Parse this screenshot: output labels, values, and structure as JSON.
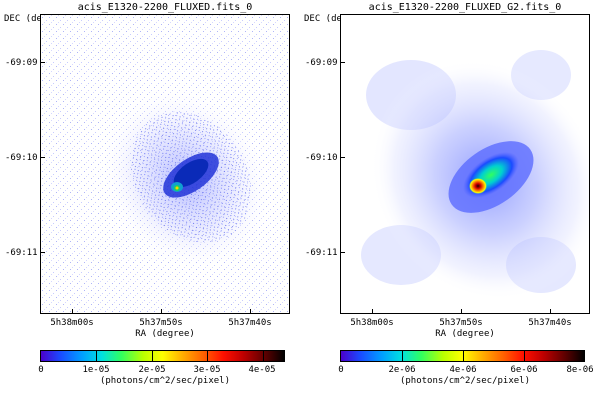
{
  "panels": [
    {
      "title": "acis_E1320-2200_FLUXED.fits_0",
      "dec_label": "DEC (degree)",
      "ra_label": "RA (degree)",
      "dec_ticks": [
        "-69:09",
        "-69:10",
        "-69:11"
      ],
      "ra_ticks": [
        "5h38m00s",
        "5h37m50s",
        "5h37m40s"
      ],
      "colorbar_ticks": [
        "0",
        "1e-05",
        "2e-05",
        "3e-05",
        "4e-05"
      ],
      "colorbar_units": "(photons/cm^2/sec/pixel)"
    },
    {
      "title": "acis_E1320-2200_FLUXED_G2.fits_0",
      "dec_label": "DEC (degree)",
      "ra_label": "RA (degree)",
      "dec_ticks": [
        "-69:09",
        "-69:10",
        "-69:11"
      ],
      "ra_ticks": [
        "5h38m00s",
        "5h37m50s",
        "5h37m40s"
      ],
      "colorbar_ticks": [
        "0",
        "2e-06",
        "4e-06",
        "6e-06",
        "8e-06"
      ],
      "colorbar_units": "(photons/cm^2/sec/pixel)"
    }
  ]
}
